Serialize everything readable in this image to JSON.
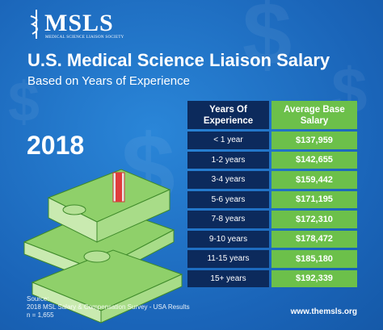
{
  "logo": {
    "name": "MSLS",
    "tagline": "MEDICAL SCIENCE LIAISON SOCIETY"
  },
  "title": "U.S. Medical Science Liaison Salary",
  "subtitle": "Based on Years of Experience",
  "year": "2018",
  "table": {
    "headers": [
      "Years Of Experience",
      "Average Base Salary"
    ],
    "rows": [
      [
        "< 1 year",
        "$137,959"
      ],
      [
        "1-2 years",
        "$142,655"
      ],
      [
        "3-4 years",
        "$159,442"
      ],
      [
        "5-6 years",
        "$171,195"
      ],
      [
        "7-8 years",
        "$172,310"
      ],
      [
        "9-10 years",
        "$178,472"
      ],
      [
        "11-15 years",
        "$185,180"
      ],
      [
        "15+ years",
        "$192,339"
      ]
    ]
  },
  "footer": {
    "source_label": "Source:",
    "source": "2018 MSL Salary & Compensation Survey - USA Results",
    "sample": "n = 1,655",
    "url": "www.themsls.org"
  }
}
